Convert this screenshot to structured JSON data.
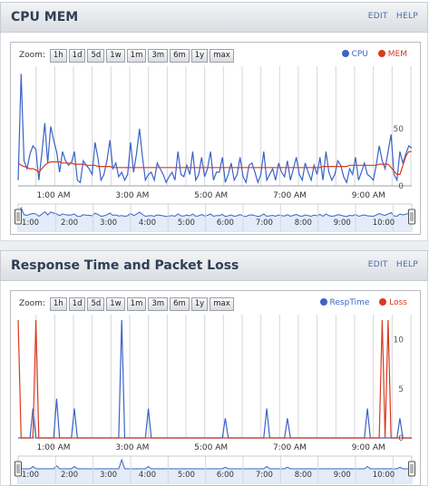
{
  "colors": {
    "cpu": "#3a63c8",
    "mem": "#d93a1e",
    "resp": "#3a63c8",
    "loss": "#d93a1e",
    "grid": "#d5d7da",
    "nav_fill": "#e3ecf8"
  },
  "zoom_label": "Zoom:",
  "zoom_buttons": [
    "1h",
    "1d",
    "5d",
    "1w",
    "1m",
    "3m",
    "6m",
    "1y",
    "max"
  ],
  "panels": [
    {
      "title": "CPU MEM",
      "edit_label": "EDIT",
      "help_label": "HELP",
      "chart_data": {
        "type": "line",
        "x": [
          0,
          5,
          10,
          15,
          20,
          25,
          30,
          35,
          40,
          45,
          50,
          55,
          60,
          65,
          70,
          75,
          80,
          85,
          90,
          95,
          100,
          105,
          110,
          115,
          120,
          125,
          130,
          135,
          140,
          145,
          150,
          155,
          160,
          165,
          170,
          175,
          180,
          185,
          190,
          195,
          200,
          205,
          210,
          215,
          220,
          225,
          230,
          235,
          240,
          245,
          250,
          255,
          260,
          265,
          270,
          275,
          280,
          285,
          290,
          295,
          300,
          305,
          310,
          315,
          320,
          325,
          330,
          335,
          340,
          345,
          350,
          355,
          360,
          365,
          370,
          375,
          380,
          385,
          390,
          395,
          400,
          405,
          410,
          415,
          420,
          425,
          430,
          435,
          440,
          445,
          450,
          455,
          460,
          465,
          470,
          475,
          480,
          485,
          490,
          495,
          500,
          505,
          510,
          515,
          520,
          525,
          530,
          535,
          540,
          545,
          550,
          555,
          560,
          565,
          570,
          575,
          580,
          585,
          590,
          595,
          600,
          605,
          610,
          615,
          620,
          625,
          630,
          635,
          640,
          645,
          650,
          655,
          660,
          665
        ],
        "series": [
          {
            "name": "CPU",
            "values": [
              5,
              98,
              22,
              15,
              28,
              35,
              32,
              5,
              28,
              55,
              20,
              52,
              40,
              30,
              12,
              30,
              22,
              18,
              20,
              30,
              5,
              3,
              22,
              18,
              15,
              10,
              38,
              24,
              5,
              10,
              22,
              40,
              15,
              20,
              8,
              12,
              5,
              10,
              38,
              12,
              28,
              50,
              25,
              5,
              10,
              12,
              5,
              20,
              15,
              10,
              3,
              8,
              12,
              5,
              30,
              10,
              8,
              18,
              10,
              30,
              5,
              10,
              25,
              8,
              15,
              30,
              5,
              12,
              12,
              25,
              3,
              10,
              20,
              5,
              10,
              25,
              8,
              3,
              18,
              20,
              12,
              3,
              10,
              30,
              5,
              10,
              15,
              5,
              20,
              12,
              8,
              22,
              5,
              15,
              25,
              10,
              5,
              20,
              12,
              5,
              18,
              10,
              25,
              5,
              30,
              12,
              5,
              10,
              22,
              18,
              8,
              3,
              15,
              10,
              25,
              5,
              12,
              20,
              10,
              8,
              5,
              18,
              35,
              22,
              15,
              30,
              45,
              10,
              5,
              30,
              20,
              28,
              35,
              33
            ]
          },
          {
            "name": "MEM",
            "values": [
              20,
              18,
              17,
              16,
              15,
              15,
              14,
              12,
              15,
              18,
              20,
              21,
              21,
              21,
              21,
              20,
              20,
              20,
              20,
              19,
              19,
              19,
              19,
              18,
              18,
              18,
              18,
              17,
              17,
              17,
              17,
              17,
              16,
              16,
              16,
              16,
              16,
              16,
              16,
              16,
              16,
              16,
              16,
              16,
              16,
              16,
              16,
              16,
              16,
              16,
              16,
              16,
              16,
              16,
              16,
              16,
              16,
              16,
              16,
              16,
              16,
              16,
              16,
              16,
              16,
              16,
              16,
              16,
              16,
              16,
              16,
              16,
              16,
              16,
              16,
              16,
              16,
              16,
              16,
              16,
              16,
              16,
              16,
              16,
              16,
              16,
              16,
              16,
              16,
              16,
              16,
              16,
              16,
              16,
              16,
              16,
              16,
              16,
              16,
              16,
              16,
              16,
              16,
              17,
              17,
              17,
              17,
              17,
              17,
              17,
              17,
              17,
              18,
              18,
              18,
              18,
              18,
              18,
              18,
              18,
              18,
              18,
              19,
              19,
              19,
              19,
              16,
              13,
              10,
              10,
              18,
              26,
              30,
              30
            ]
          }
        ],
        "xlabels": [
          "1:00 AM",
          "3:00 AM",
          "5:00 AM",
          "7:00 AM",
          "9:00 AM"
        ],
        "ylabels": [
          "50",
          "0"
        ],
        "ylim": [
          0,
          100
        ],
        "grid": true,
        "legend": "top-right",
        "navigator_labels": [
          "1:00",
          "2:00",
          "3:00",
          "4:00",
          "5:00",
          "6:00",
          "7:00",
          "8:00",
          "9:00",
          "10:00"
        ]
      }
    },
    {
      "title": "Response Time and Packet Loss",
      "edit_label": "EDIT",
      "help_label": "HELP",
      "chart_data": {
        "type": "line",
        "x": [
          0,
          5,
          10,
          15,
          20,
          25,
          30,
          35,
          40,
          45,
          50,
          55,
          60,
          65,
          70,
          75,
          80,
          85,
          90,
          95,
          100,
          105,
          110,
          115,
          120,
          125,
          130,
          135,
          140,
          145,
          150,
          155,
          160,
          165,
          170,
          175,
          180,
          185,
          190,
          195,
          200,
          205,
          210,
          215,
          220,
          225,
          230,
          235,
          240,
          245,
          250,
          255,
          260,
          265,
          270,
          275,
          280,
          285,
          290,
          295,
          300,
          305,
          310,
          315,
          320,
          325,
          330,
          335,
          340,
          345,
          350,
          355,
          360,
          365,
          370,
          375,
          380,
          385,
          390,
          395,
          400,
          405,
          410,
          415,
          420,
          425,
          430,
          435,
          440,
          445,
          450,
          455,
          460,
          465,
          470,
          475,
          480,
          485,
          490,
          495,
          500,
          505,
          510,
          515,
          520,
          525,
          530,
          535,
          540,
          545,
          550,
          555,
          560,
          565,
          570,
          575,
          580,
          585,
          590,
          595,
          600,
          605,
          610,
          615,
          620,
          625,
          630,
          635,
          640,
          645,
          650,
          655,
          660,
          665
        ],
        "series": [
          {
            "name": "RespTime",
            "values": [
              0,
              0,
              0,
              0,
              0,
              3,
              0,
              0,
              0,
              0,
              0,
              0,
              0,
              4,
              0,
              0,
              0,
              0,
              0,
              3,
              0,
              0,
              0,
              0,
              0,
              0,
              0,
              0,
              0,
              0,
              0,
              0,
              0,
              0,
              0,
              12,
              0,
              0,
              0,
              0,
              0,
              0,
              0,
              0,
              3,
              0,
              0,
              0,
              0,
              0,
              0,
              0,
              0,
              0,
              0,
              0,
              0,
              0,
              0,
              0,
              0,
              0,
              0,
              0,
              0,
              0,
              0,
              0,
              0,
              0,
              2,
              0,
              0,
              0,
              0,
              0,
              0,
              0,
              0,
              0,
              0,
              0,
              0,
              0,
              3,
              0,
              0,
              0,
              0,
              0,
              0,
              2,
              0,
              0,
              0,
              0,
              0,
              0,
              0,
              0,
              0,
              0,
              0,
              0,
              0,
              0,
              0,
              0,
              0,
              0,
              0,
              0,
              0,
              0,
              0,
              0,
              0,
              0,
              3,
              0,
              0,
              0,
              0,
              0,
              0,
              0,
              0,
              0,
              0,
              2,
              0,
              0,
              0,
              0
            ]
          },
          {
            "name": "Loss",
            "values": [
              12,
              0,
              0,
              0,
              0,
              0,
              12,
              0,
              0,
              0,
              0,
              0,
              0,
              0,
              0,
              0,
              0,
              0,
              0,
              0,
              0,
              0,
              0,
              0,
              0,
              0,
              0,
              0,
              0,
              0,
              0,
              0,
              0,
              0,
              0,
              0,
              0,
              0,
              0,
              0,
              0,
              0,
              0,
              0,
              0,
              0,
              0,
              0,
              0,
              0,
              0,
              0,
              0,
              0,
              0,
              0,
              0,
              0,
              0,
              0,
              0,
              0,
              0,
              0,
              0,
              0,
              0,
              0,
              0,
              0,
              0,
              0,
              0,
              0,
              0,
              0,
              0,
              0,
              0,
              0,
              0,
              0,
              0,
              0,
              0,
              0,
              0,
              0,
              0,
              0,
              0,
              0,
              0,
              0,
              0,
              0,
              0,
              0,
              0,
              0,
              0,
              0,
              0,
              0,
              0,
              0,
              0,
              0,
              0,
              0,
              0,
              0,
              0,
              0,
              0,
              0,
              0,
              0,
              0,
              0,
              0,
              0,
              0,
              12,
              0,
              12,
              0,
              0,
              0,
              0,
              0,
              0,
              0,
              0
            ]
          }
        ],
        "xlabels": [
          "1:00 AM",
          "3:00 AM",
          "5:00 AM",
          "7:00 AM",
          "9:00 AM"
        ],
        "ylabels": [
          "10",
          "5",
          "0"
        ],
        "ylim": [
          0,
          12
        ],
        "grid": true,
        "legend": "top-right",
        "navigator_labels": [
          "1:00",
          "2:00",
          "3:00",
          "4:00",
          "5:00",
          "6:00",
          "7:00",
          "8:00",
          "9:00",
          "10:00"
        ]
      }
    }
  ]
}
